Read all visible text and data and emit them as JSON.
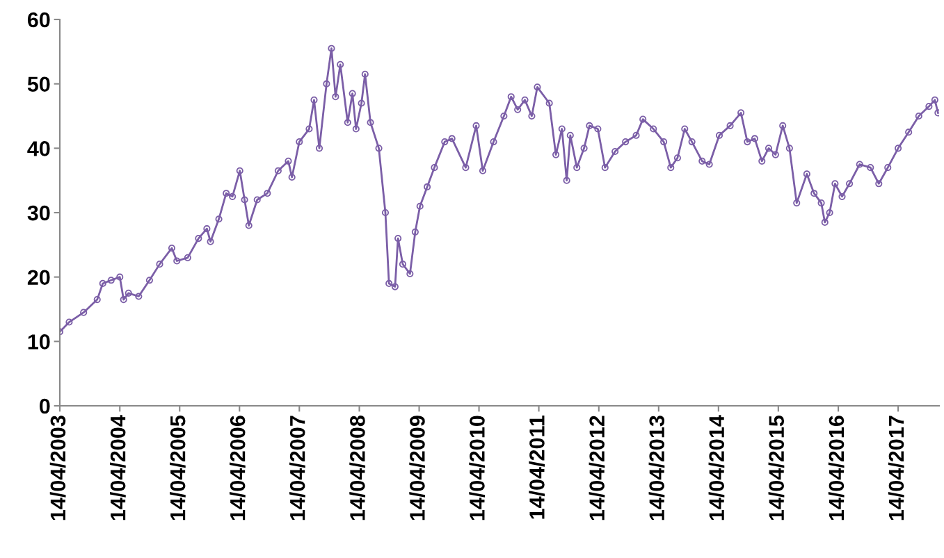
{
  "chart_data": {
    "type": "line",
    "marker": "circle",
    "line_style": "solid",
    "grid": false,
    "x": [
      "2003-04-14",
      "2003-06-10",
      "2003-09-06",
      "2003-11-28",
      "2004-01-01",
      "2004-02-21",
      "2004-04-14",
      "2004-05-07",
      "2004-06-06",
      "2004-08-07",
      "2004-10-12",
      "2004-12-13",
      "2005-02-25",
      "2005-03-28",
      "2005-06-02",
      "2005-08-07",
      "2005-09-27",
      "2005-10-19",
      "2005-12-09",
      "2006-01-23",
      "2006-03-02",
      "2006-04-16",
      "2006-05-15",
      "2006-06-10",
      "2006-07-31",
      "2006-10-01",
      "2006-12-06",
      "2007-02-06",
      "2007-02-28",
      "2007-04-14",
      "2007-06-13",
      "2007-07-13",
      "2007-08-14",
      "2007-09-27",
      "2007-10-27",
      "2007-11-21",
      "2007-12-20",
      "2008-02-03",
      "2008-03-03",
      "2008-03-25",
      "2008-04-27",
      "2008-05-19",
      "2008-06-21",
      "2008-08-11",
      "2008-09-20",
      "2008-10-12",
      "2008-11-18",
      "2008-12-06",
      "2009-01-04",
      "2009-02-17",
      "2009-03-21",
      "2009-04-19",
      "2009-06-02",
      "2009-07-16",
      "2009-09-17",
      "2009-10-31",
      "2010-01-23",
      "2010-03-28",
      "2010-05-07",
      "2010-07-12",
      "2010-09-13",
      "2010-10-27",
      "2010-12-06",
      "2011-01-19",
      "2011-03-02",
      "2011-04-05",
      "2011-06-17",
      "2011-07-27",
      "2011-09-02",
      "2011-10-01",
      "2011-10-23",
      "2011-12-02",
      "2012-01-15",
      "2012-02-17",
      "2012-04-08",
      "2012-05-22",
      "2012-07-22",
      "2012-09-24",
      "2012-11-28",
      "2013-01-08",
      "2013-03-13",
      "2013-05-15",
      "2013-06-27",
      "2013-08-07",
      "2013-09-20",
      "2013-11-03",
      "2014-01-04",
      "2014-02-17",
      "2014-04-19",
      "2014-06-24",
      "2014-08-29",
      "2014-10-07",
      "2014-11-21",
      "2015-01-04",
      "2015-02-14",
      "2015-03-28",
      "2015-05-11",
      "2015-06-21",
      "2015-08-04",
      "2015-10-05",
      "2015-11-18",
      "2016-01-01",
      "2016-01-23",
      "2016-02-21",
      "2016-03-25",
      "2016-05-07",
      "2016-06-21",
      "2016-08-22",
      "2016-10-27",
      "2016-12-17",
      "2017-02-10",
      "2017-04-14",
      "2017-06-17",
      "2017-08-18",
      "2017-10-19",
      "2017-11-24",
      "2017-12-13"
    ],
    "series": [
      {
        "color": "#7b5ea7",
        "values": [
          11.5,
          13,
          14.5,
          16.5,
          19,
          19.5,
          20,
          16.5,
          17.5,
          17,
          19.5,
          22,
          24.5,
          22.5,
          23,
          26,
          27.5,
          25.5,
          29,
          33,
          32.5,
          36.5,
          32,
          28,
          32,
          33,
          36.5,
          38,
          35.5,
          41,
          43,
          47.5,
          40,
          50,
          55.5,
          48,
          53,
          44,
          48.5,
          43,
          47,
          51.5,
          44,
          40,
          30,
          19,
          18.5,
          26,
          22,
          20.5,
          27,
          31,
          34,
          37,
          41,
          41.5,
          37,
          43.5,
          36.5,
          41,
          45,
          48,
          46,
          47.5,
          45,
          49.5,
          47,
          39,
          43,
          35,
          42,
          37,
          40,
          43.5,
          43,
          37,
          39.5,
          41,
          42,
          44.5,
          43,
          41,
          37,
          38.5,
          43,
          41,
          38,
          37.5,
          42,
          43.5,
          45.5,
          41,
          41.5,
          38,
          40,
          39,
          43.5,
          40,
          31.5,
          36,
          33,
          31.5,
          28.5,
          30,
          34.5,
          32.5,
          34.5,
          37.5,
          37,
          34.5,
          37,
          40,
          42.5,
          45,
          46.5,
          47.5,
          45.5
        ]
      }
    ],
    "xlim": [
      "2003-04-14",
      "2017-12-20"
    ],
    "xticks": [
      {
        "value": "2003-04-14",
        "label": "14/04/2003"
      },
      {
        "value": "2004-04-14",
        "label": "14/04/2004"
      },
      {
        "value": "2005-04-14",
        "label": "14/04/2005"
      },
      {
        "value": "2006-04-14",
        "label": "14/04/2006"
      },
      {
        "value": "2007-04-14",
        "label": "14/04/2007"
      },
      {
        "value": "2008-04-14",
        "label": "14/04/2008"
      },
      {
        "value": "2009-04-14",
        "label": "14/04/2009"
      },
      {
        "value": "2010-04-14",
        "label": "14/04/2010"
      },
      {
        "value": "2011-04-14",
        "label": "14/04/2011"
      },
      {
        "value": "2012-04-14",
        "label": "14/04/2012"
      },
      {
        "value": "2013-04-14",
        "label": "14/04/2013"
      },
      {
        "value": "2014-04-14",
        "label": "14/04/2014"
      },
      {
        "value": "2015-04-14",
        "label": "14/04/2015"
      },
      {
        "value": "2016-04-14",
        "label": "14/04/2016"
      },
      {
        "value": "2017-04-14",
        "label": "14/04/2017"
      }
    ],
    "ylim": [
      0,
      60
    ],
    "yticks": [
      0,
      10,
      20,
      30,
      40,
      50,
      60
    ]
  }
}
